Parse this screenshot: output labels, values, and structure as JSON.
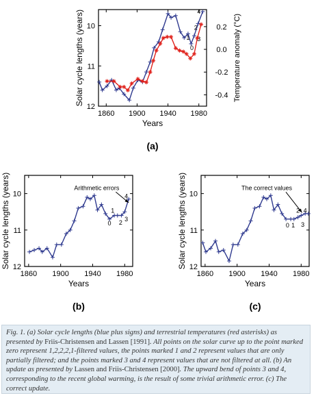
{
  "colors": {
    "solar": "#2f3a8f",
    "temperature": "#e0221c",
    "axis": "#000000"
  },
  "chart_data": [
    {
      "type": "line",
      "panel_label": "(a)",
      "xlabel": "Years",
      "ylabel": "Solar  cycle  lengths  (years)",
      "y2label": "Temperature  anomaly  (°C)",
      "xlim": [
        1850,
        1990
      ],
      "ylim": [
        9.6,
        12.0
      ],
      "y_inverted": true,
      "y2lim": [
        -0.5,
        0.35
      ],
      "x_ticks": [
        1860,
        1900,
        1940,
        1980
      ],
      "y_ticks": [
        10,
        11,
        12
      ],
      "y2_ticks": [
        0.2,
        0.0,
        -0.2,
        -0.4
      ],
      "y2_tick_labels": [
        "0.2",
        "0.0",
        "-0.2",
        "-0.4"
      ],
      "series": [
        {
          "marker": "plus",
          "x": [
            1851,
            1855,
            1861,
            1867,
            1873,
            1877,
            1883,
            1890,
            1895,
            1901,
            1907,
            1912,
            1917,
            1922,
            1928,
            1933,
            1940,
            1944,
            1950,
            1956,
            1961,
            1966,
            1970,
            1974,
            1979,
            1985
          ],
          "y": [
            11.4,
            11.6,
            11.5,
            11.35,
            11.6,
            11.55,
            11.7,
            11.85,
            11.55,
            11.35,
            11.4,
            11.15,
            10.9,
            10.55,
            10.4,
            10.1,
            9.7,
            9.8,
            9.75,
            10.15,
            10.3,
            10.2,
            10.45,
            10.25,
            9.95,
            9.65
          ],
          "point_labels": [
            {
              "x": 1971,
              "y": 10.55,
              "text": "0"
            },
            {
              "x": 1966,
              "y": 10.3,
              "text": "1"
            },
            {
              "x": 1976,
              "y": 10.05,
              "text": "2"
            },
            {
              "x": 1980,
              "y": 10.33,
              "text": "3"
            },
            {
              "x": 1980,
              "y": 9.65,
              "text": "4"
            }
          ]
        },
        {
          "marker": "asterisk",
          "axis": "y2",
          "x": [
            1861,
            1870,
            1878,
            1883,
            1888,
            1893,
            1901,
            1907,
            1912,
            1917,
            1921,
            1925,
            1930,
            1934,
            1939,
            1944,
            1950,
            1955,
            1960,
            1964,
            1969,
            1974,
            1978,
            1983
          ],
          "y": [
            -0.28,
            -0.28,
            -0.33,
            -0.33,
            -0.36,
            -0.3,
            -0.26,
            -0.28,
            -0.29,
            -0.2,
            -0.1,
            -0.01,
            0.05,
            0.1,
            0.11,
            0.11,
            0.01,
            -0.01,
            -0.02,
            -0.04,
            -0.08,
            -0.04,
            0.1,
            0.22
          ]
        }
      ]
    },
    {
      "type": "line",
      "panel_label": "(b)",
      "xlabel": "Years",
      "ylabel": "Solar  cycle  lengths  (years)",
      "xlim": [
        1855,
        1990
      ],
      "ylim": [
        9.5,
        12.0
      ],
      "y_inverted": true,
      "x_ticks": [
        1860,
        1900,
        1940,
        1980
      ],
      "y_ticks": [
        10,
        11,
        12
      ],
      "annotation": {
        "text": "Arithmetic   errors",
        "x": 1945,
        "y": 9.9,
        "arrow_to": [
          1985,
          10.25
        ]
      },
      "series": [
        {
          "marker": "plus",
          "x": [
            1861,
            1867,
            1873,
            1877,
            1883,
            1890,
            1895,
            1901,
            1907,
            1912,
            1917,
            1922,
            1928,
            1933,
            1937,
            1942,
            1946,
            1951,
            1956,
            1961,
            1967,
            1971,
            1976,
            1980,
            1985
          ],
          "y": [
            11.6,
            11.55,
            11.5,
            11.6,
            11.5,
            11.75,
            11.4,
            11.4,
            11.1,
            11.0,
            10.75,
            10.4,
            10.35,
            10.1,
            10.15,
            10.05,
            10.45,
            10.3,
            10.55,
            10.7,
            10.6,
            10.6,
            10.6,
            10.5,
            10.15
          ],
          "point_labels": [
            {
              "x": 1961,
              "y": 10.82,
              "text": "0"
            },
            {
              "x": 1965,
              "y": 10.47,
              "text": "1"
            },
            {
              "x": 1975,
              "y": 10.8,
              "text": "2"
            },
            {
              "x": 1982,
              "y": 10.7,
              "text": "3"
            },
            {
              "x": 1982,
              "y": 10.07,
              "text": "4"
            }
          ]
        }
      ]
    },
    {
      "type": "line",
      "panel_label": "(c)",
      "xlabel": "Years",
      "ylabel": "Solar  cycle  lengths  (years)",
      "xlim": [
        1855,
        1990
      ],
      "ylim": [
        9.5,
        12.0
      ],
      "y_inverted": true,
      "x_ticks": [
        1860,
        1900,
        1940,
        1980
      ],
      "y_ticks": [
        10,
        11,
        12
      ],
      "annotation": {
        "text": "The  correct  values",
        "x": 1937,
        "y": 9.9,
        "arrow_to": [
          1981,
          10.52
        ]
      },
      "series": [
        {
          "marker": "plus",
          "x": [
            1857,
            1861,
            1867,
            1873,
            1877,
            1883,
            1890,
            1895,
            1901,
            1907,
            1912,
            1917,
            1922,
            1928,
            1933,
            1937,
            1942,
            1946,
            1951,
            1956,
            1961,
            1967,
            1971,
            1976,
            1980,
            1985,
            1989
          ],
          "y": [
            11.35,
            11.6,
            11.5,
            11.3,
            11.6,
            11.55,
            11.85,
            11.4,
            11.4,
            11.1,
            11.0,
            10.75,
            10.4,
            10.35,
            10.1,
            10.15,
            10.05,
            10.45,
            10.3,
            10.55,
            10.7,
            10.7,
            10.7,
            10.65,
            10.6,
            10.55,
            10.55
          ],
          "point_labels": [
            {
              "x": 1963,
              "y": 10.87,
              "text": "0"
            },
            {
              "x": 1970,
              "y": 10.87,
              "text": "1"
            },
            {
              "x": 1976,
              "y": 10.47,
              "text": "2"
            },
            {
              "x": 1982,
              "y": 10.85,
              "text": "3"
            },
            {
              "x": 1985,
              "y": 10.47,
              "text": "4"
            }
          ]
        }
      ]
    }
  ],
  "caption": {
    "part1": "Fig. 1. (a) Solar cycle lengths (blue plus signs) and terrestrial temperatures (red asterisks) as presented by ",
    "part2": "Friis-Christensen and Lassen [1991]",
    "part3": ". All points on the solar curve up to the point marked zero represent 1,2,2,2,1-filtered values, the points marked 1 and 2 represent values that are only partially filtered; and the points marked 3 and 4 represent values that are not filtered at all. (b) An update as presented by ",
    "part4": "Lassen and Friis-Christensen [2000]",
    "part5": ". The upward bend of points 3 and 4, corresponding to the recent global warming, is the result of some trivial arithmetic error. (c) The correct update."
  }
}
